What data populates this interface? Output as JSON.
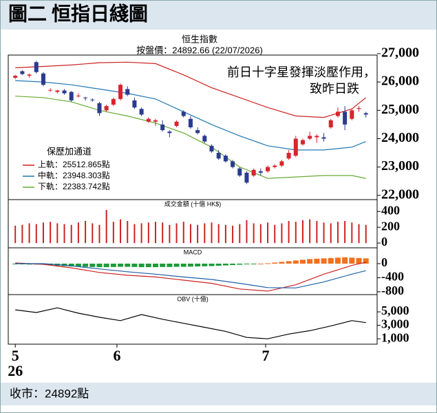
{
  "header": {
    "title": "圖二 恒指日綫圖"
  },
  "chart_data": [
    {
      "type": "candlestick",
      "title": "恒生指數",
      "subtitle": "按盤價：24892.66 (22/07/2026)",
      "annotations": [
        "前日十字星發揮淡壓作用，",
        "致昨日跌"
      ],
      "legend_title": "保歷加通道",
      "xlim": [
        -1,
        51.6
      ],
      "ylim": [
        21850,
        26950
      ],
      "yticks": [
        {
          "value": 27000,
          "label": "27,000"
        },
        {
          "value": 26000,
          "label": "26,000"
        },
        {
          "value": 25000,
          "label": "25,000"
        },
        {
          "value": 24000,
          "label": "24,000"
        },
        {
          "value": 23000,
          "label": "23,000"
        },
        {
          "value": 22000,
          "label": "22,000"
        }
      ],
      "up_color": "#d9232d",
      "down_color": "#2a3b8f",
      "candles": {
        "open": [
          26150,
          26380,
          26220,
          26700,
          26300,
          25700,
          25650,
          25700,
          25650,
          25500,
          25450,
          25380,
          25250,
          25000,
          25200,
          25400,
          25750,
          25350,
          25050,
          24600,
          24600,
          24500,
          24250,
          24450,
          24950,
          24700,
          24300,
          24100,
          23750,
          23500,
          23400,
          23200,
          22950,
          22800,
          22700,
          22850,
          22850,
          23000,
          23050,
          23300,
          23400,
          23800,
          24000,
          24050,
          24050,
          24400,
          24800,
          24950,
          24700,
          25050,
          24900
        ],
        "high": [
          26250,
          26420,
          26300,
          26750,
          26350,
          25780,
          25720,
          25750,
          25680,
          25600,
          25480,
          25420,
          25300,
          25200,
          25450,
          25950,
          25850,
          25450,
          25100,
          24750,
          24700,
          24650,
          24300,
          24650,
          25000,
          24800,
          24400,
          24150,
          23800,
          23600,
          23450,
          23250,
          23000,
          22850,
          22950,
          22950,
          23050,
          23100,
          23250,
          23600,
          24100,
          24000,
          24250,
          24150,
          24200,
          24700,
          25100,
          25150,
          25050,
          25150,
          24950
        ],
        "low": [
          26100,
          26250,
          26150,
          26300,
          25850,
          25650,
          25600,
          25550,
          25300,
          25450,
          25350,
          25300,
          24800,
          24950,
          25150,
          25350,
          25500,
          25050,
          24800,
          24550,
          24450,
          24250,
          24050,
          24400,
          24750,
          24350,
          24150,
          23850,
          23500,
          23250,
          23150,
          22950,
          22650,
          22400,
          22650,
          22700,
          22800,
          22950,
          23000,
          23250,
          23350,
          23750,
          23950,
          23850,
          23900,
          24350,
          24750,
          24300,
          24650,
          24950,
          24750
        ],
        "close": [
          26220,
          26280,
          26260,
          26350,
          25900,
          25720,
          25700,
          25600,
          25350,
          25520,
          25440,
          25360,
          24900,
          25150,
          25400,
          25900,
          25550,
          25100,
          24850,
          24700,
          24650,
          24300,
          24200,
          24600,
          24800,
          24400,
          24200,
          23900,
          23550,
          23300,
          23200,
          23000,
          22700,
          22450,
          22900,
          22800,
          23000,
          23050,
          23200,
          23500,
          24000,
          23950,
          24100,
          24100,
          24000,
          24650,
          24950,
          24500,
          25000,
          25080,
          24850
        ]
      },
      "series": [
        {
          "name": "上軌：25512.865點",
          "color": "#cc2222",
          "x": [
            0,
            4,
            8,
            12,
            16,
            20,
            24,
            28,
            32,
            36,
            40,
            44,
            48,
            50
          ],
          "values": [
            26500,
            26550,
            26600,
            26680,
            26700,
            26650,
            26250,
            25800,
            25450,
            25100,
            24800,
            24750,
            25050,
            25450
          ]
        },
        {
          "name": "中軌：23948.303點",
          "color": "#1f77b4",
          "x": [
            0,
            4,
            8,
            12,
            16,
            20,
            24,
            28,
            32,
            36,
            40,
            44,
            48,
            50
          ],
          "values": [
            26050,
            26000,
            25900,
            25750,
            25600,
            25400,
            24950,
            24500,
            24100,
            23750,
            23600,
            23600,
            23700,
            23900
          ]
        },
        {
          "name": "下軌：22383.742點",
          "color": "#66aa33",
          "x": [
            0,
            4,
            8,
            12,
            16,
            20,
            24,
            28,
            32,
            36,
            40,
            44,
            48,
            50
          ],
          "values": [
            25500,
            25450,
            25300,
            25000,
            24800,
            24550,
            24200,
            23700,
            23000,
            22600,
            22650,
            22700,
            22700,
            22600
          ]
        }
      ]
    },
    {
      "type": "bar",
      "title": "成交金額 (十億 HK$)",
      "color": "#cc2222",
      "xlim": [
        -1,
        51.6
      ],
      "ylim": [
        -60,
        550
      ],
      "yticks": [
        400,
        200,
        0
      ],
      "values": [
        220,
        230,
        250,
        240,
        260,
        270,
        250,
        240,
        230,
        260,
        280,
        250,
        230,
        420,
        270,
        300,
        280,
        240,
        250,
        260,
        270,
        260,
        230,
        250,
        270,
        240,
        230,
        250,
        260,
        240,
        230,
        220,
        240,
        290,
        250,
        240,
        260,
        230,
        250,
        280,
        270,
        290,
        300,
        280,
        260,
        250,
        270,
        280,
        260,
        240,
        230
      ]
    },
    {
      "type": "combo",
      "title": "MACD",
      "xlim": [
        -1,
        51.6
      ],
      "ylim": [
        -880,
        450
      ],
      "yticks": [
        0,
        -400,
        -800
      ],
      "series": [
        {
          "type": "bar",
          "color_positive": "#f07020",
          "color_negative": "#1e9a3a",
          "values": [
            -20,
            -20,
            -25,
            -25,
            -30,
            -40,
            -60,
            -70,
            -80,
            -90,
            -90,
            -95,
            -100,
            -100,
            -95,
            -90,
            -90,
            -95,
            -100,
            -100,
            -100,
            -95,
            -95,
            -90,
            -90,
            -85,
            -80,
            -75,
            -70,
            -60,
            -50,
            -40,
            -30,
            -20,
            -10,
            0,
            10,
            30,
            50,
            70,
            90,
            110,
            130,
            140,
            150,
            160,
            170,
            180,
            170,
            160,
            150
          ]
        },
        {
          "type": "line",
          "color": "#cc2222",
          "x": [
            0,
            4,
            8,
            12,
            16,
            20,
            24,
            28,
            32,
            36,
            40,
            44,
            48,
            50
          ],
          "values": [
            20,
            -20,
            -120,
            -250,
            -330,
            -380,
            -470,
            -560,
            -720,
            -780,
            -600,
            -300,
            -50,
            40
          ]
        },
        {
          "type": "line",
          "color": "#1f5fa8",
          "x": [
            0,
            4,
            8,
            12,
            16,
            20,
            24,
            28,
            32,
            36,
            40,
            44,
            48,
            50
          ],
          "values": [
            0,
            0,
            -60,
            -150,
            -230,
            -300,
            -380,
            -450,
            -560,
            -680,
            -690,
            -520,
            -300,
            -200
          ]
        }
      ]
    },
    {
      "type": "line",
      "title": "OBV (十億)",
      "xlim": [
        -1,
        51.6
      ],
      "ylim": [
        200,
        7560
      ],
      "yticks": [
        {
          "value": 5000,
          "label": "5,000"
        },
        {
          "value": 3000,
          "label": "3,000"
        },
        {
          "value": 1000,
          "label": "1,000"
        }
      ],
      "xticks": [
        {
          "value": 0,
          "label": "5"
        },
        {
          "value": 14.5,
          "label": "6"
        },
        {
          "value": 35.7,
          "label": "7"
        }
      ],
      "year_label": "26",
      "series": [
        {
          "color": "#000000",
          "x": [
            0,
            3,
            6,
            9,
            12,
            15,
            18,
            21,
            24,
            27,
            30,
            33,
            36,
            39,
            42,
            45,
            48,
            50
          ],
          "values": [
            5300,
            4900,
            5600,
            4800,
            4200,
            3700,
            4600,
            3900,
            3300,
            2700,
            2100,
            1200,
            1000,
            1700,
            2200,
            2900,
            3700,
            3400
          ]
        }
      ]
    }
  ],
  "footer": {
    "text": "收市：24892點"
  }
}
